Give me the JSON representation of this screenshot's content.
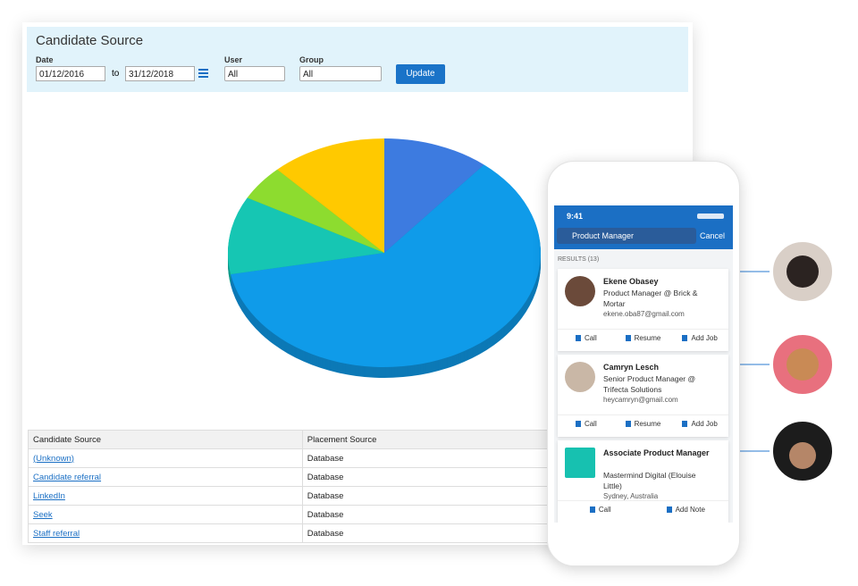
{
  "header": {
    "title": "Candidate Source"
  },
  "filters": {
    "date_label": "Date",
    "date_from": "01/12/2016",
    "to": "to",
    "date_to": "31/12/2018",
    "user_label": "User",
    "user_value": "All",
    "group_label": "Group",
    "group_value": "All",
    "button": "Update"
  },
  "pie": {
    "values": [
      11,
      61,
      11,
      5,
      12
    ],
    "colors": [
      "#3d7be0",
      "#0f9be9",
      "#16c6b3",
      "#8ddc2f",
      "#ffc900"
    ]
  },
  "table": {
    "headers": [
      "Candidate Source",
      "Placement Source"
    ],
    "rows": [
      [
        "(Unknown)",
        "Database"
      ],
      [
        "Candidate referral",
        "Database"
      ],
      [
        "LinkedIn",
        "Database"
      ],
      [
        "Seek",
        "Database"
      ],
      [
        "Staff referral",
        "Database"
      ]
    ]
  },
  "phone": {
    "time": "9:41",
    "search": "Product Manager",
    "cancel": "Cancel",
    "results": "RESULTS (13)",
    "cards": [
      {
        "name": "Ekene Obasey",
        "role": "Product Manager @ Brick & Mortar",
        "detail": "ekene.oba87@gmail.com",
        "actions": [
          "Call",
          "Resume",
          "Add Job"
        ]
      },
      {
        "name": "Camryn Lesch",
        "role": "Senior Product Manager @ Trifecta Solutions",
        "detail": "heycamryn@gmail.com",
        "actions": [
          "Call",
          "Resume",
          "Add Job"
        ]
      },
      {
        "name": "Associate Product Manager",
        "role": "Mastermind Digital (Elouise Little)",
        "detail": "Sydney, Australia",
        "actions": [
          "Call",
          "Add Note"
        ]
      }
    ]
  }
}
